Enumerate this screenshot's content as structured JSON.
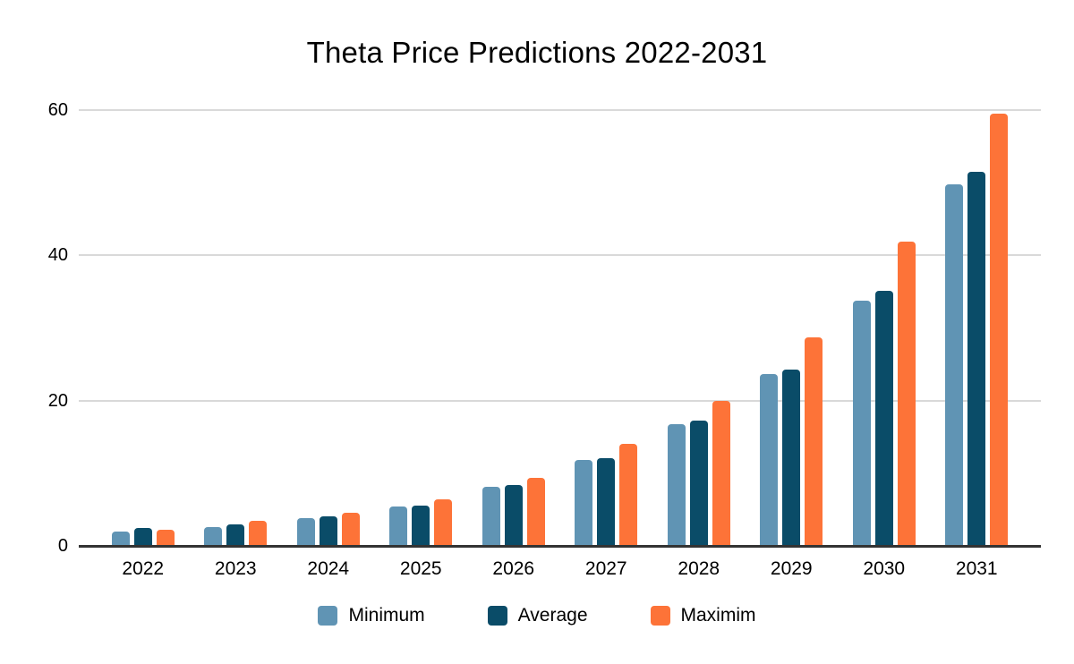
{
  "chart": {
    "title": "Theta Price Predictions 2022-2031"
  },
  "chart_data": {
    "type": "bar",
    "title": "Theta Price Predictions 2022-2031",
    "categories": [
      "2022",
      "2023",
      "2024",
      "2025",
      "2026",
      "2027",
      "2028",
      "2029",
      "2030",
      "2031"
    ],
    "series": [
      {
        "name": "Minimum",
        "color": "#6094b4",
        "values": [
          1.8,
          2.5,
          3.7,
          5.3,
          8.0,
          11.7,
          16.6,
          23.5,
          33.7,
          49.7
        ]
      },
      {
        "name": "Average",
        "color": "#0a4c68",
        "values": [
          2.3,
          2.8,
          4.0,
          5.4,
          8.3,
          11.9,
          17.1,
          24.2,
          35.0,
          51.4
        ]
      },
      {
        "name": "Maximim",
        "color": "#fd7338",
        "values": [
          2.1,
          3.3,
          4.4,
          6.3,
          9.3,
          13.9,
          19.8,
          28.6,
          41.8,
          59.4
        ]
      }
    ],
    "xlabel": "",
    "ylabel": "",
    "ylim": [
      0,
      60
    ],
    "y_ticks": [
      0,
      20,
      40,
      60
    ],
    "grid": true,
    "legend_position": "bottom",
    "colors": {
      "gridline": "#d9d9d9",
      "axis_line": "#333333",
      "text": "#000000",
      "background": "#ffffff"
    }
  }
}
